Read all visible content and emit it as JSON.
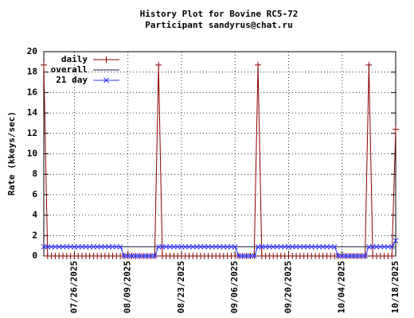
{
  "chart_data": {
    "type": "line",
    "title": "History Plot for Bovine RC5-72",
    "subtitle": "Participant sandyrus@chat.ru",
    "y_label": "Rate (kkeys/sec)",
    "x": [
      "07/18/2025",
      "07/19/2025",
      "07/20/2025",
      "07/21/2025",
      "07/22/2025",
      "07/23/2025",
      "07/24/2025",
      "07/25/2025",
      "07/26/2025",
      "07/27/2025",
      "07/28/2025",
      "07/29/2025",
      "07/30/2025",
      "07/31/2025",
      "08/01/2025",
      "08/02/2025",
      "08/03/2025",
      "08/04/2025",
      "08/05/2025",
      "08/06/2025",
      "08/07/2025",
      "08/08/2025",
      "08/09/2025",
      "08/10/2025",
      "08/11/2025",
      "08/12/2025",
      "08/13/2025",
      "08/14/2025",
      "08/15/2025",
      "08/16/2025",
      "08/17/2025",
      "08/18/2025",
      "08/19/2025",
      "08/20/2025",
      "08/21/2025",
      "08/22/2025",
      "08/23/2025",
      "08/24/2025",
      "08/25/2025",
      "08/26/2025",
      "08/27/2025",
      "08/28/2025",
      "08/29/2025",
      "08/30/2025",
      "08/31/2025",
      "09/01/2025",
      "09/02/2025",
      "09/03/2025",
      "09/04/2025",
      "09/05/2025",
      "09/06/2025",
      "09/07/2025",
      "09/08/2025",
      "09/09/2025",
      "09/10/2025",
      "09/11/2025",
      "09/12/2025",
      "09/13/2025",
      "09/14/2025",
      "09/15/2025",
      "09/16/2025",
      "09/17/2025",
      "09/18/2025",
      "09/19/2025",
      "09/20/2025",
      "09/21/2025",
      "09/22/2025",
      "09/23/2025",
      "09/24/2025",
      "09/25/2025",
      "09/26/2025",
      "09/27/2025",
      "09/28/2025",
      "09/29/2025",
      "09/30/2025",
      "10/01/2025",
      "10/02/2025",
      "10/03/2025",
      "10/04/2025",
      "10/05/2025",
      "10/06/2025",
      "10/07/2025",
      "10/08/2025",
      "10/09/2025",
      "10/10/2025",
      "10/11/2025",
      "10/12/2025",
      "10/13/2025",
      "10/14/2025",
      "10/15/2025",
      "10/16/2025",
      "10/17/2025",
      "10/18/2025"
    ],
    "series": [
      {
        "name": "daily",
        "color": "#8b0000",
        "marker": "plus",
        "values": [
          18.7,
          0,
          0,
          0,
          0,
          0,
          0,
          0,
          0,
          0,
          0,
          0,
          0,
          0,
          0,
          0,
          0,
          0,
          0,
          0,
          0,
          0,
          0,
          0,
          0,
          0,
          0,
          0,
          0,
          0,
          18.7,
          0,
          0,
          0,
          0,
          0,
          0,
          0,
          0,
          0,
          0,
          0,
          0,
          0,
          0,
          0,
          0,
          0,
          0,
          0,
          0,
          0,
          0,
          0,
          0,
          0,
          18.7,
          0,
          0,
          0,
          0,
          0,
          0,
          0,
          0,
          0,
          0,
          0,
          0,
          0,
          0,
          0,
          0,
          0,
          0,
          0,
          0,
          0,
          0,
          0,
          0,
          0,
          0,
          0,
          0,
          18.7,
          0,
          0,
          0,
          0,
          0,
          0,
          12.4
        ]
      },
      {
        "name": "overall",
        "color": "#1c1c48",
        "marker": "none",
        "values": [
          0.9,
          0.9,
          0.9,
          0.9,
          0.9,
          0.9,
          0.9,
          0.9,
          0.9,
          0.9,
          0.9,
          0.9,
          0.9,
          0.9,
          0.9,
          0.9,
          0.9,
          0.9,
          0.9,
          0.9,
          0.9,
          0.9,
          0.9,
          0.9,
          0.9,
          0.9,
          0.9,
          0.9,
          0.9,
          0.9,
          0.9,
          0.9,
          0.9,
          0.9,
          0.9,
          0.9,
          0.9,
          0.9,
          0.9,
          0.9,
          0.9,
          0.9,
          0.9,
          0.9,
          0.9,
          0.9,
          0.9,
          0.9,
          0.9,
          0.9,
          0.9,
          0.9,
          0.9,
          0.9,
          0.9,
          0.9,
          0.9,
          0.9,
          0.9,
          0.9,
          0.9,
          0.9,
          0.9,
          0.9,
          0.9,
          0.9,
          0.9,
          0.9,
          0.9,
          0.9,
          0.9,
          0.9,
          0.9,
          0.9,
          0.9,
          0.9,
          0.9,
          0.9,
          0.9,
          0.9,
          0.9,
          0.9,
          0.9,
          0.9,
          0.9,
          0.9,
          0.9,
          0.9,
          0.9,
          0.9,
          0.9,
          0.9,
          0.9
        ]
      },
      {
        "name": "21 day",
        "color": "#3333ff",
        "marker": "cross",
        "values": [
          0.9,
          0.9,
          0.9,
          0.9,
          0.9,
          0.9,
          0.9,
          0.9,
          0.9,
          0.9,
          0.9,
          0.9,
          0.9,
          0.9,
          0.9,
          0.9,
          0.9,
          0.9,
          0.9,
          0.9,
          0.9,
          0,
          0,
          0,
          0,
          0,
          0,
          0,
          0,
          0,
          0.9,
          0.9,
          0.9,
          0.9,
          0.9,
          0.9,
          0.9,
          0.9,
          0.9,
          0.9,
          0.9,
          0.9,
          0.9,
          0.9,
          0.9,
          0.9,
          0.9,
          0.9,
          0.9,
          0.9,
          0.9,
          0,
          0,
          0,
          0,
          0,
          0.9,
          0.9,
          0.9,
          0.9,
          0.9,
          0.9,
          0.9,
          0.9,
          0.9,
          0.9,
          0.9,
          0.9,
          0.9,
          0.9,
          0.9,
          0.9,
          0.9,
          0.9,
          0.9,
          0.9,
          0.9,
          0,
          0,
          0,
          0,
          0,
          0,
          0,
          0,
          0.9,
          0.9,
          0.9,
          0.9,
          0.9,
          0.9,
          0.9,
          1.5
        ]
      }
    ],
    "xlim": [
      "07/18/2025",
      "10/18/2025"
    ],
    "xticks": [
      "07/26/2025",
      "08/09/2025",
      "08/23/2025",
      "09/06/2025",
      "09/20/2025",
      "10/04/2025",
      "10/18/2025"
    ],
    "ylim": [
      0,
      20
    ],
    "yticks": [
      0,
      2,
      4,
      6,
      8,
      10,
      12,
      14,
      16,
      18,
      20
    ],
    "grid": true,
    "legend": "top-left"
  }
}
